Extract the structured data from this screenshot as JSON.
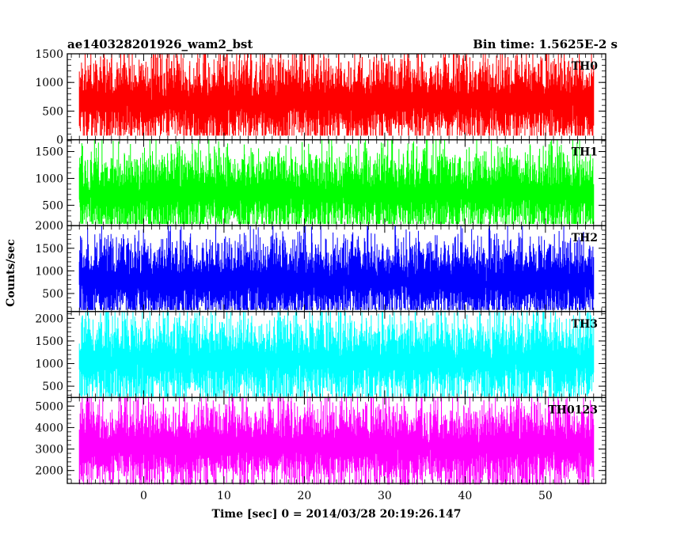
{
  "chart_data": {
    "type": "line",
    "title": "ae140328201926_wam2_bst",
    "subtitle": "Bin time: 1.5625E-2 s",
    "xlabel": "Time [sec] 0 = 2014/03/28 20:19:26.147",
    "ylabel": "Counts/sec",
    "xlim": [
      -9.5,
      57.5
    ],
    "x_ticks": [
      0,
      10,
      20,
      30,
      40,
      50
    ],
    "x_data_range": [
      -8,
      56
    ],
    "panels": [
      {
        "name": "TH0",
        "color": "#ff0000",
        "ylim": [
          0,
          1500
        ],
        "yticks": [
          0,
          500,
          1000,
          1500
        ],
        "mean": 650,
        "low": 80,
        "high": 1500
      },
      {
        "name": "TH1",
        "color": "#00ff00",
        "ylim": [
          120,
          1720
        ],
        "yticks": [
          500,
          1000,
          1500
        ],
        "mean": 700,
        "low": 170,
        "high": 1650
      },
      {
        "name": "TH2",
        "color": "#0000ff",
        "ylim": [
          100,
          2000
        ],
        "yticks": [
          500,
          1000,
          1500,
          2000
        ],
        "mean": 750,
        "low": 150,
        "high": 1850
      },
      {
        "name": "TH3",
        "color": "#00ffff",
        "ylim": [
          250,
          2150
        ],
        "yticks": [
          500,
          1000,
          1500,
          2000
        ],
        "mean": 1050,
        "low": 300,
        "high": 2100
      },
      {
        "name": "TH0123",
        "color": "#ff00ff",
        "ylim": [
          1400,
          5400
        ],
        "yticks": [
          2000,
          3000,
          4000,
          5000
        ],
        "mean": 3100,
        "low": 1500,
        "high": 5200
      }
    ]
  }
}
